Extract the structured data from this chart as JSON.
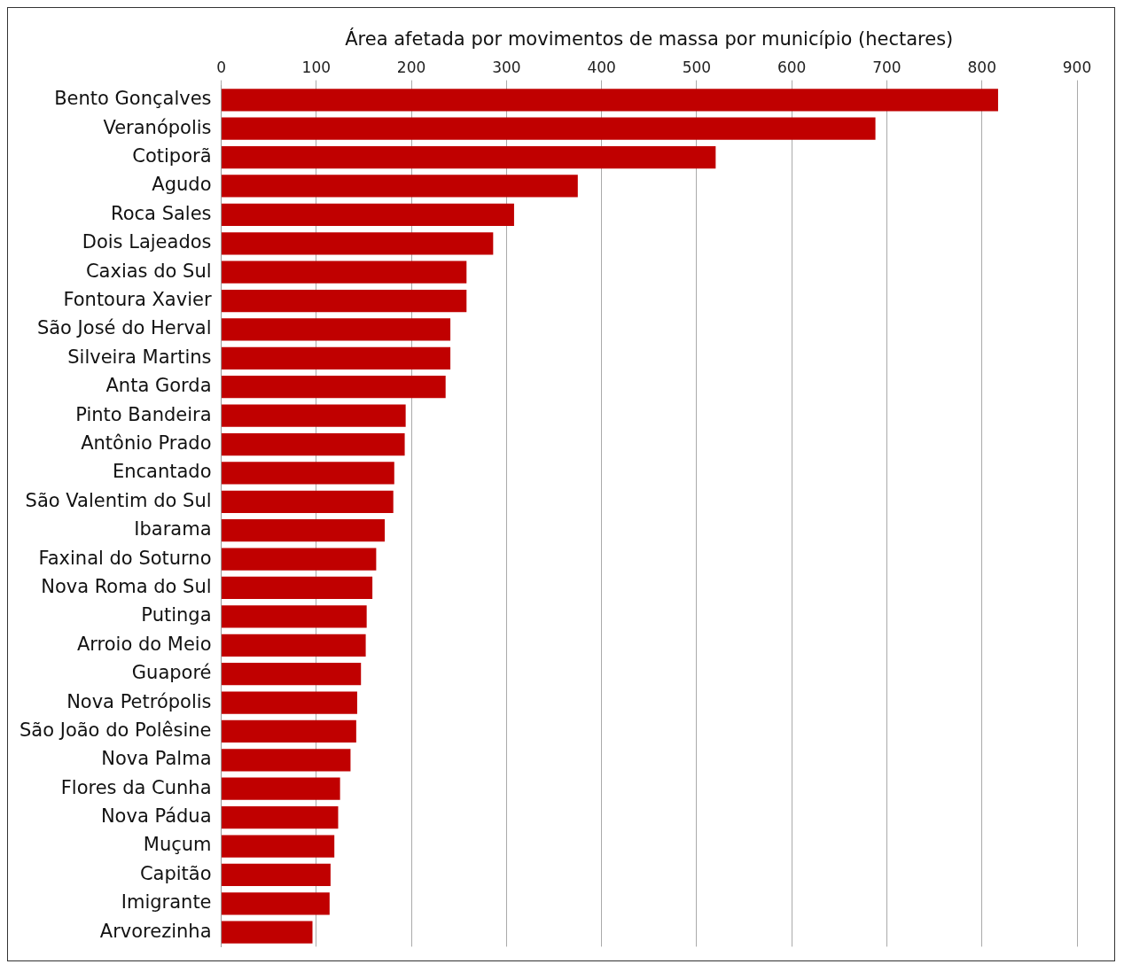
{
  "chart_data": {
    "type": "bar",
    "orientation": "horizontal",
    "xlabel": "Área afetada por movimentos de massa por município (hectares)",
    "categories": [
      "Bento Gonçalves",
      "Veranópolis",
      "Cotiporã",
      "Agudo",
      "Roca Sales",
      "Dois Lajeados",
      "Caxias do Sul",
      "Fontoura Xavier",
      "São José do Herval",
      "Silveira Martins",
      "Anta Gorda",
      "Pinto Bandeira",
      "Antônio Prado",
      "Encantado",
      "São Valentim do Sul",
      "Ibarama",
      "Faxinal do Soturno",
      "Nova Roma do Sul",
      "Putinga",
      "Arroio do Meio",
      "Guaporé",
      "Nova Petrópolis",
      "São João do Polêsine",
      "Nova Palma",
      "Flores da Cunha",
      "Nova Pádua",
      "Muçum",
      "Capitão",
      "Imigrante",
      "Arvorezinha"
    ],
    "values": [
      817,
      688,
      520,
      375,
      308,
      286,
      258,
      258,
      241,
      241,
      236,
      194,
      193,
      182,
      181,
      172,
      163,
      159,
      153,
      152,
      147,
      143,
      142,
      136,
      125,
      123,
      119,
      115,
      114,
      96
    ],
    "color": "#c00000",
    "xlim": [
      0,
      900
    ],
    "xticks": [
      0,
      100,
      200,
      300,
      400,
      500,
      600,
      700,
      800,
      900
    ],
    "grid": "x",
    "legend": false
  }
}
